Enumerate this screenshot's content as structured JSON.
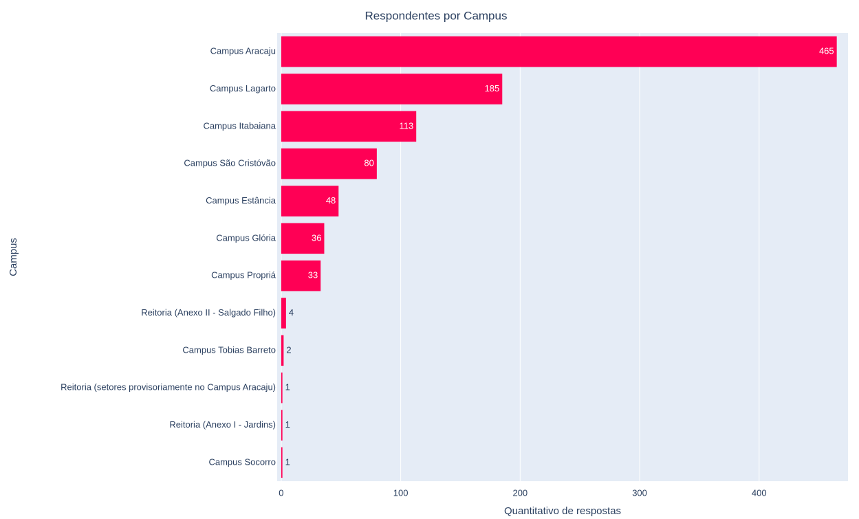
{
  "chart_data": {
    "type": "bar",
    "orientation": "horizontal",
    "title": "Respondentes por Campus",
    "x_label": "Quantitativo de respostas",
    "y_label": "Campus",
    "categories": [
      "Campus Aracaju",
      "Campus Lagarto",
      "Campus Itabaiana",
      "Campus São Cristóvão",
      "Campus Estância",
      "Campus Glória",
      "Campus Propriá",
      "Reitoria (Anexo II - Salgado Filho)",
      "Campus Tobias Barreto",
      "Reitoria (setores provisoriamente no Campus Aracaju)",
      "Reitoria (Anexo I - Jardins)",
      "Campus Socorro"
    ],
    "values": [
      465,
      185,
      113,
      80,
      48,
      36,
      33,
      4,
      2,
      1,
      1,
      1
    ],
    "color": "#ff0055",
    "xlim": [
      -3.4,
      474.4
    ],
    "xticks": [
      0,
      100,
      200,
      300,
      400
    ],
    "grid": true
  }
}
